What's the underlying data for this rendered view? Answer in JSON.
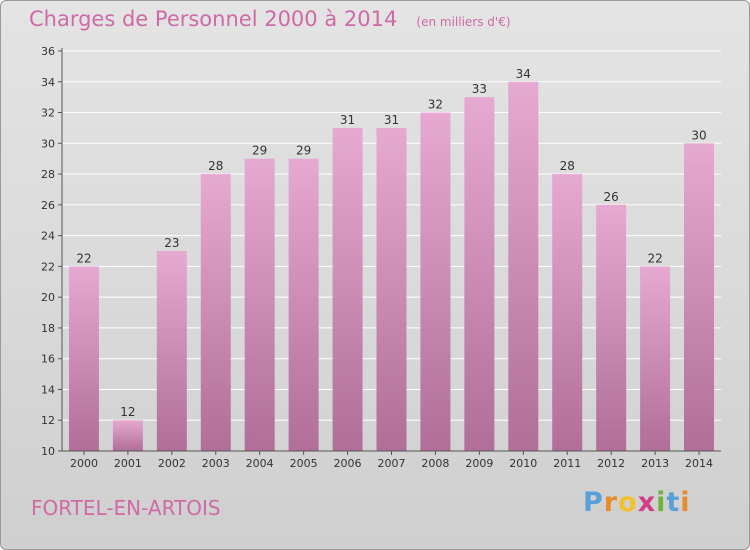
{
  "header": {
    "title": "Charges de Personnel 2000 à 2014",
    "subtitle": "(en milliers d'€)"
  },
  "footer": {
    "commune": "FORTEL-EN-ARTOIS",
    "brand": "Proxiti"
  },
  "colors": {
    "title": "#d06aa6",
    "bar_top": "#e6a9d1",
    "bar_bottom": "#b06e98",
    "axis": "#555555",
    "grid": "#ffffff",
    "brand_letters": [
      "#5aa0d8",
      "#e98b2a",
      "#f2c12e",
      "#d23d8a",
      "#6bb33b",
      "#5aa0d8",
      "#e98b2a"
    ]
  },
  "chart_data": {
    "type": "bar",
    "categories": [
      "2000",
      "2001",
      "2002",
      "2003",
      "2004",
      "2005",
      "2006",
      "2007",
      "2008",
      "2009",
      "2010",
      "2011",
      "2012",
      "2013",
      "2014"
    ],
    "values": [
      22,
      12,
      23,
      28,
      29,
      29,
      31,
      31,
      32,
      33,
      34,
      28,
      26,
      22,
      30
    ],
    "title": "Charges de Personnel 2000 à 2014",
    "subtitle": "(en milliers d'€)",
    "xlabel": "",
    "ylabel": "",
    "ylim": [
      10,
      36
    ],
    "yticks": [
      10,
      12,
      14,
      16,
      18,
      20,
      22,
      24,
      26,
      28,
      30,
      32,
      34,
      36
    ],
    "grid": true,
    "data_labels": true
  }
}
